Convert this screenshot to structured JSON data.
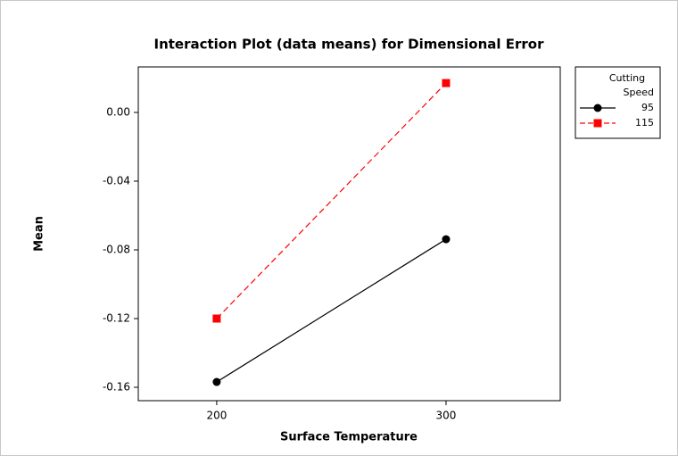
{
  "chart_data": {
    "type": "line",
    "title": "Interaction Plot (data means) for Dimensional Error",
    "xlabel": "Surface Temperature",
    "ylabel": "Mean",
    "x": [
      200,
      300
    ],
    "xlim": [
      165.8,
      349.8
    ],
    "xticks": [
      200,
      300
    ],
    "ylim": [
      -0.1678,
      0.0265
    ],
    "yticks": [
      {
        "value": 0,
        "label": "0.00"
      },
      -0.04,
      -0.08,
      -0.12,
      -0.16
    ],
    "legend_title": [
      "Cutting",
      "Speed"
    ],
    "legend_position": "outside-right",
    "series": [
      {
        "name": "95",
        "color": "#000000",
        "line_style": "solid",
        "marker": "circle",
        "values": [
          -0.1569,
          -0.0738
        ]
      },
      {
        "name": "115",
        "color": "#ff0000",
        "line_style": "dashed",
        "marker": "square",
        "values": [
          -0.12,
          0.0171
        ]
      }
    ]
  }
}
